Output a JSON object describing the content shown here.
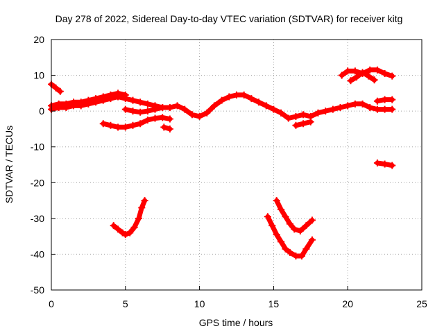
{
  "chart_data": {
    "type": "scatter",
    "title": "Day 278 of 2022, Sidereal Day-to-day VTEC variation (SDTVAR) for receiver kitg",
    "xlabel": "GPS time / hours",
    "ylabel": "SDTVAR / TECUs",
    "xlim": [
      0,
      25
    ],
    "ylim": [
      -50,
      20
    ],
    "xticks": [
      0,
      5,
      10,
      15,
      20,
      25
    ],
    "yticks": [
      -50,
      -40,
      -30,
      -20,
      -10,
      0,
      10,
      20
    ],
    "xtick_labels": [
      "0",
      "5",
      "10",
      "15",
      "20",
      "25"
    ],
    "ytick_labels": [
      "-50",
      "-40",
      "-30",
      "-20",
      "-10",
      "0",
      "10",
      "20"
    ],
    "grid": true,
    "color": "#ff0000",
    "series": [
      {
        "name": "main-trace",
        "points": [
          [
            0,
            0.5
          ],
          [
            0.5,
            1
          ],
          [
            1,
            1
          ],
          [
            1.5,
            1.5
          ],
          [
            2,
            1.5
          ],
          [
            2.5,
            2
          ],
          [
            3,
            2.5
          ],
          [
            3.5,
            3
          ],
          [
            4,
            3.5
          ],
          [
            4.5,
            4
          ],
          [
            5,
            3.5
          ],
          [
            5.5,
            3
          ],
          [
            6,
            2.5
          ],
          [
            6.5,
            2
          ],
          [
            7,
            1.5
          ],
          [
            7.5,
            1
          ],
          [
            8,
            1
          ],
          [
            8.5,
            1.5
          ],
          [
            9,
            0.5
          ],
          [
            9.5,
            -1
          ],
          [
            10,
            -1.5
          ],
          [
            10.5,
            -0.5
          ],
          [
            11,
            1.5
          ],
          [
            11.5,
            3
          ],
          [
            12,
            4
          ],
          [
            12.5,
            4.5
          ],
          [
            13,
            4.5
          ],
          [
            13.5,
            3.5
          ],
          [
            14,
            2.5
          ],
          [
            14.5,
            1.5
          ],
          [
            15,
            0.5
          ],
          [
            15.5,
            -0.5
          ],
          [
            16,
            -2
          ],
          [
            16.5,
            -1.5
          ],
          [
            17,
            -1
          ],
          [
            17.5,
            -1.5
          ],
          [
            18,
            -0.5
          ],
          [
            18.5,
            0
          ],
          [
            19,
            0.5
          ],
          [
            19.5,
            1
          ],
          [
            20,
            1.5
          ],
          [
            20.5,
            2
          ],
          [
            21,
            2
          ],
          [
            21.5,
            1
          ],
          [
            22,
            0.5
          ],
          [
            22.5,
            0.5
          ],
          [
            23,
            0.5
          ]
        ]
      },
      {
        "name": "early-upper",
        "points": [
          [
            0,
            1.5
          ],
          [
            0.5,
            2
          ],
          [
            1,
            2
          ],
          [
            1.5,
            2.5
          ],
          [
            2,
            2.5
          ],
          [
            2.5,
            3
          ],
          [
            3,
            3.5
          ],
          [
            3.5,
            4
          ],
          [
            4,
            4.5
          ],
          [
            4.5,
            5
          ],
          [
            5,
            4.5
          ]
        ]
      },
      {
        "name": "start-drop",
        "points": [
          [
            0,
            7.5
          ],
          [
            0.3,
            6.5
          ],
          [
            0.6,
            5.5
          ]
        ]
      },
      {
        "name": "lower-arc-4-7",
        "points": [
          [
            3.5,
            -3.5
          ],
          [
            4,
            -4
          ],
          [
            4.5,
            -4.5
          ],
          [
            5,
            -4.5
          ],
          [
            5.5,
            -4
          ],
          [
            6,
            -3.5
          ],
          [
            6.5,
            -2.5
          ],
          [
            7,
            -2
          ],
          [
            7.5,
            -1.8
          ],
          [
            8,
            -2.2
          ]
        ]
      },
      {
        "name": "mid-segment-5-8",
        "points": [
          [
            5,
            0.5
          ],
          [
            5.5,
            0
          ],
          [
            6,
            -0.3
          ],
          [
            6.5,
            0
          ],
          [
            7,
            0.5
          ],
          [
            7.5,
            1
          ]
        ]
      },
      {
        "name": "short-low-8",
        "points": [
          [
            7.6,
            -4.5
          ],
          [
            8,
            -5
          ]
        ]
      },
      {
        "name": "dip-4-6",
        "points": [
          [
            4.2,
            -32
          ],
          [
            4.5,
            -33
          ],
          [
            4.8,
            -34
          ],
          [
            5,
            -34.5
          ],
          [
            5.3,
            -34
          ],
          [
            5.6,
            -32.5
          ],
          [
            5.9,
            -30
          ],
          [
            6.1,
            -27
          ],
          [
            6.3,
            -25
          ]
        ]
      },
      {
        "name": "dip-15-17-upper",
        "points": [
          [
            15.2,
            -25
          ],
          [
            15.5,
            -27.5
          ],
          [
            15.8,
            -29.5
          ],
          [
            16.1,
            -31.5
          ],
          [
            16.4,
            -33
          ],
          [
            16.8,
            -33.5
          ],
          [
            17.2,
            -32
          ],
          [
            17.6,
            -30.5
          ]
        ]
      },
      {
        "name": "dip-14-17-lower",
        "points": [
          [
            14.6,
            -29.5
          ],
          [
            14.9,
            -32
          ],
          [
            15.2,
            -34.5
          ],
          [
            15.5,
            -36.5
          ],
          [
            15.8,
            -38.5
          ],
          [
            16.1,
            -39.5
          ],
          [
            16.5,
            -40.5
          ],
          [
            16.9,
            -40.5
          ],
          [
            17.2,
            -38.5
          ],
          [
            17.6,
            -36
          ]
        ]
      },
      {
        "name": "short-low-17",
        "points": [
          [
            16.5,
            -4
          ],
          [
            17,
            -3.5
          ],
          [
            17.5,
            -3
          ]
        ]
      },
      {
        "name": "arc-20-23",
        "points": [
          [
            19.6,
            10
          ],
          [
            20,
            11.2
          ],
          [
            20.5,
            11.2
          ],
          [
            21,
            10.5
          ],
          [
            21.5,
            11.5
          ],
          [
            22,
            11.5
          ],
          [
            22.5,
            10.5
          ],
          [
            23,
            9.8
          ]
        ]
      },
      {
        "name": "cross-20-22",
        "points": [
          [
            20.2,
            8.5
          ],
          [
            20.6,
            9.5
          ],
          [
            21,
            10.8
          ],
          [
            21.4,
            9.8
          ],
          [
            21.8,
            8.7
          ]
        ]
      },
      {
        "name": "short-21-22",
        "points": [
          [
            22,
            2.8
          ],
          [
            22.5,
            3.2
          ],
          [
            23,
            3.2
          ]
        ]
      },
      {
        "name": "short-22-23",
        "points": [
          [
            22,
            -14.5
          ],
          [
            22.5,
            -14.8
          ],
          [
            23,
            -15.2
          ]
        ]
      }
    ]
  }
}
